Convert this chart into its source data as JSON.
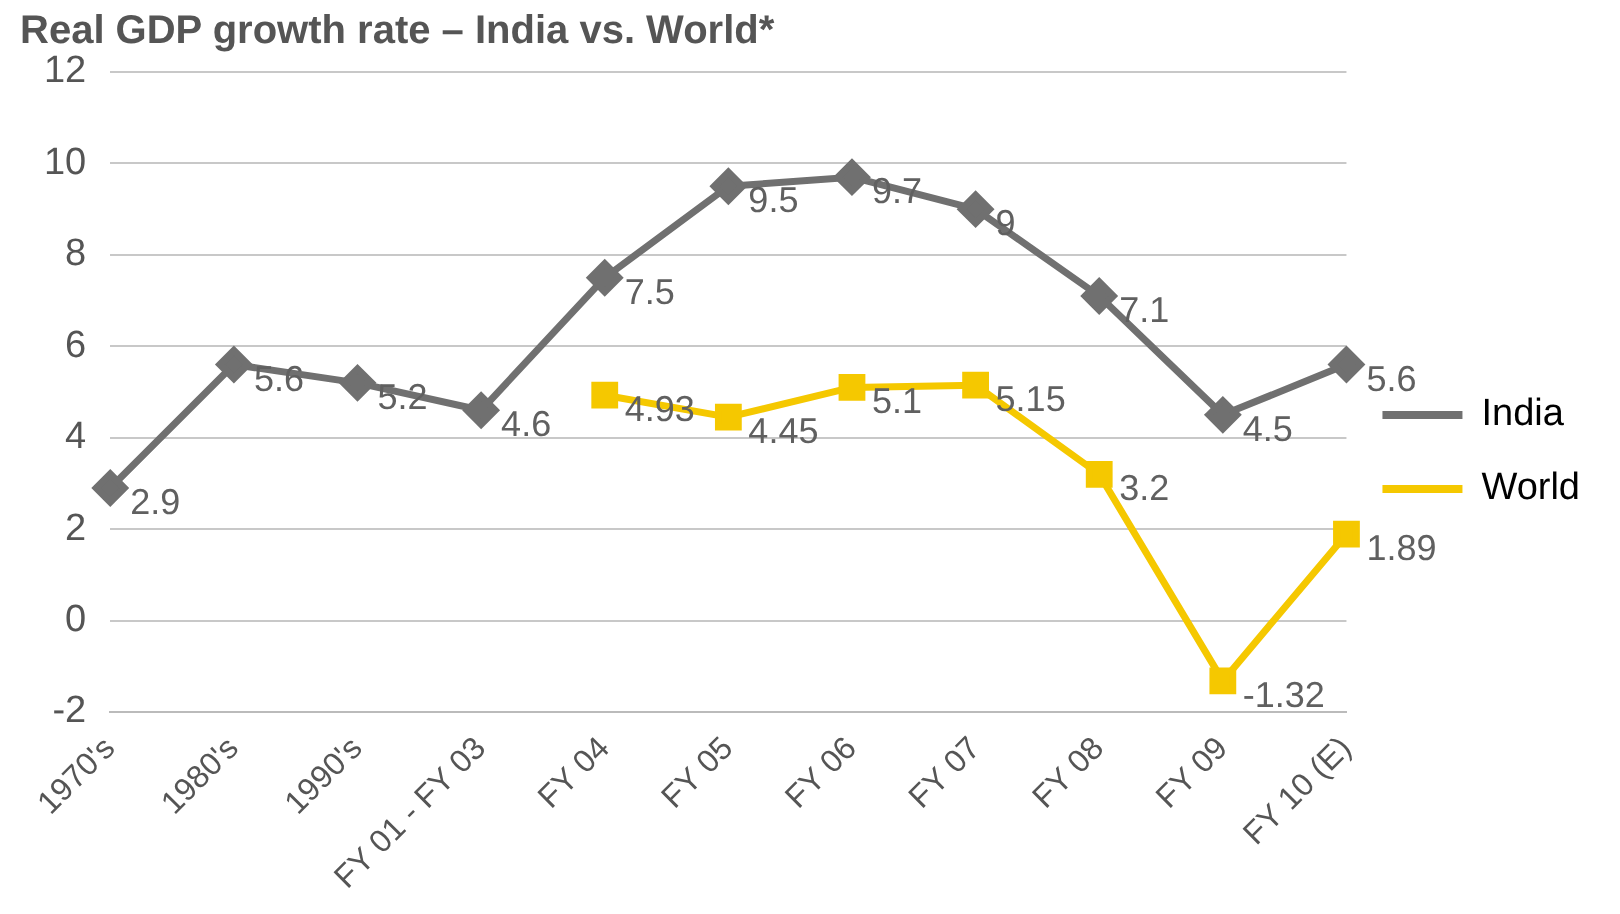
{
  "chart_data": {
    "type": "line",
    "title": "Real GDP growth rate – India vs. World*",
    "categories": [
      "1970's",
      "1980's",
      "1990's",
      "FY 01 - FY 03",
      "FY 04",
      "FY 05",
      "FY 06",
      "FY 07",
      "FY 08",
      "FY 09",
      "FY 10 (E)"
    ],
    "series": [
      {
        "name": "India",
        "color": "#707070",
        "marker": "diamond",
        "values": [
          2.9,
          5.6,
          5.2,
          4.6,
          7.5,
          9.5,
          9.7,
          9,
          7.1,
          4.5,
          5.6
        ]
      },
      {
        "name": "World",
        "color": "#f5c800",
        "marker": "square",
        "values": [
          null,
          null,
          null,
          null,
          4.93,
          4.45,
          5.1,
          5.15,
          3.2,
          -1.32,
          1.89
        ]
      }
    ],
    "ylim": [
      -2,
      12
    ],
    "yticks": [
      -2,
      0,
      2,
      4,
      6,
      8,
      10,
      12
    ],
    "grid": "y",
    "legend": "right",
    "data_labels": true,
    "line_style": "solid"
  }
}
